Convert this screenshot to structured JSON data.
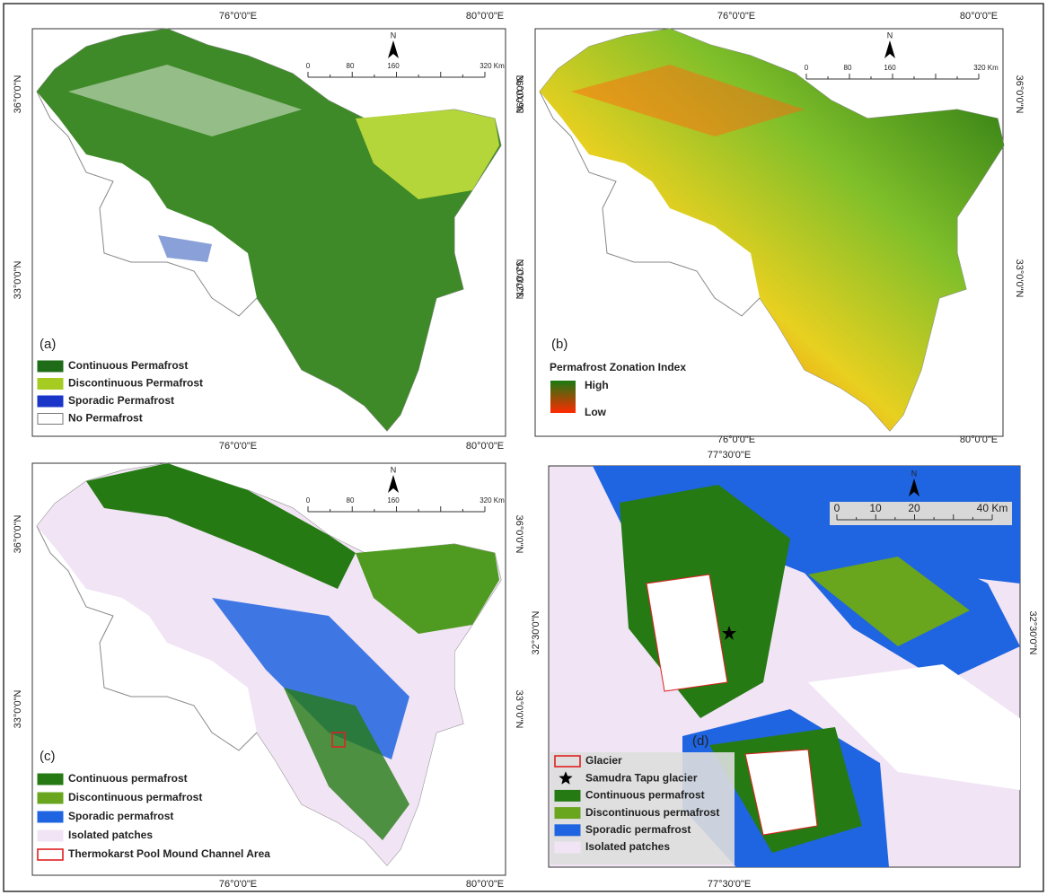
{
  "panels": [
    {
      "label": "(a)",
      "top_labels": [
        "76°0'0\"E",
        "80°0'0\"E"
      ],
      "bottom_labels": [
        "76°0'0\"E",
        "80°0'0\"E"
      ],
      "left_labels": [
        "36°0'0\"N",
        "33°0'0\"N"
      ],
      "right_labels": [
        "36°0'0\"N",
        "33°0'0\"N"
      ],
      "north": "N",
      "scale_labels": [
        "0",
        "80",
        "160",
        "320 Km"
      ],
      "legend": [
        {
          "label": "Continuous Permafrost",
          "color": "#1e6b18"
        },
        {
          "label": "Discontinuous Permafrost",
          "color": "#a6cc22"
        },
        {
          "label": "Sporadic Permafrost",
          "color": "#1a36c8"
        },
        {
          "label": "No Permafrost",
          "color": "#ffffff"
        }
      ]
    },
    {
      "label": "(b)",
      "top_labels": [
        "76°0'0\"E",
        "80°0'0\"E"
      ],
      "bottom_labels": [
        "76°0'0\"E",
        "80°0'0\"E"
      ],
      "left_labels": [
        "36°0'0\"N",
        "33°0'0\"N"
      ],
      "right_labels": [
        "36°0'0\"N",
        "33°0'0\"N"
      ],
      "north": "N",
      "scale_labels": [
        "0",
        "80",
        "160",
        "320 Km"
      ],
      "legend_title": "Permafrost Zonation Index",
      "legend": [
        {
          "label": "High",
          "color": "#1a7a12"
        },
        {
          "label": "Low",
          "color": "#ff2a00"
        }
      ]
    },
    {
      "label": "(c)",
      "bottom_labels": [
        "76°0'0\"E",
        "80°0'0\"E"
      ],
      "left_labels": [
        "36°0'0\"N",
        "33°0'0\"N"
      ],
      "right_labels": [
        "36°0'0\"N",
        "33°0'0\"N"
      ],
      "north": "N",
      "scale_labels": [
        "0",
        "80",
        "160",
        "320 Km"
      ],
      "legend": [
        {
          "label": "Continuous permafrost",
          "color": "#267a14"
        },
        {
          "label": "Discontinuous permafrost",
          "color": "#6aa51e"
        },
        {
          "label": "Sporadic permafrost",
          "color": "#1f64e0"
        },
        {
          "label": "Isolated patches",
          "color": "#f1e4f5"
        },
        {
          "label": "Thermokarst Pool Mound Channel Area",
          "color": "#e02020",
          "symbol": "outline"
        }
      ]
    },
    {
      "label": "(d)",
      "top_labels": [
        "77°30'0\"E"
      ],
      "bottom_labels": [
        "77°30'0\"E"
      ],
      "left_labels": [
        "32°30'0\"N"
      ],
      "right_labels": [
        "32°30'0\"N"
      ],
      "north": "N",
      "scale_labels": [
        "0",
        "10",
        "20",
        "40 Km"
      ],
      "legend": [
        {
          "label": "Glacier",
          "color": "#e02020",
          "symbol": "outline"
        },
        {
          "label": "Samudra Tapu glacier",
          "color": "#000000",
          "symbol": "star"
        },
        {
          "label": "Continuous permafrost",
          "color": "#267a14"
        },
        {
          "label": "Discontinuous permafrost",
          "color": "#6aa51e"
        },
        {
          "label": "Sporadic permafrost",
          "color": "#1f64e0"
        },
        {
          "label": "Isolated patches",
          "color": "#f1e4f5"
        }
      ]
    }
  ]
}
